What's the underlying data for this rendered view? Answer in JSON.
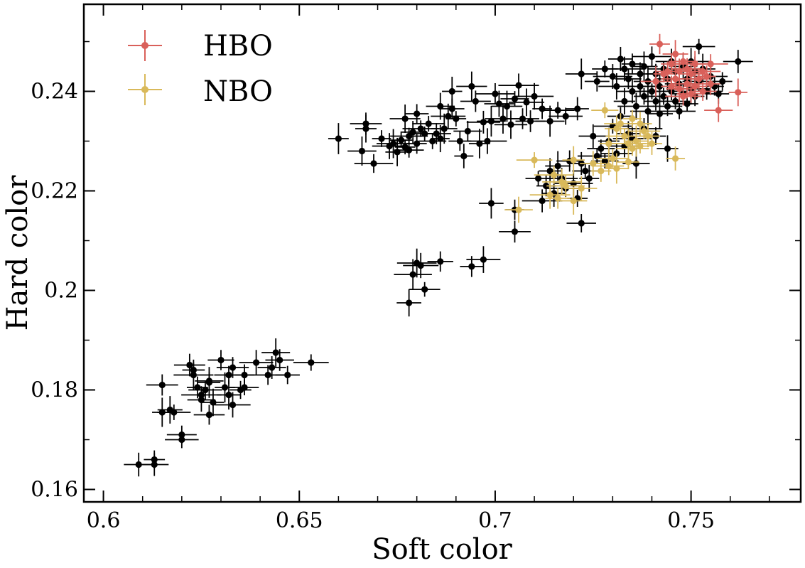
{
  "chart_data": {
    "type": "scatter",
    "xlabel": "Soft color",
    "ylabel": "Hard color",
    "xlim": [
      0.595,
      0.778
    ],
    "ylim": [
      0.1575,
      0.2575
    ],
    "xticks": [
      0.6,
      0.65,
      0.7,
      0.75
    ],
    "xtick_labels": [
      "0.6",
      "0.65",
      "0.7",
      "0.75"
    ],
    "yticks": [
      0.16,
      0.18,
      0.2,
      0.22,
      0.24
    ],
    "ytick_labels": [
      "0.16",
      "0.18",
      "0.2",
      "0.22",
      "0.24"
    ],
    "grid": false,
    "legend_position": "top-left",
    "error_bars": true,
    "series": [
      {
        "color": "#000000",
        "points": [
          [
            0.609,
            0.165
          ],
          [
            0.613,
            0.166
          ],
          [
            0.613,
            0.165
          ],
          [
            0.615,
            0.1755
          ],
          [
            0.615,
            0.181
          ],
          [
            0.617,
            0.176
          ],
          [
            0.618,
            0.1755
          ],
          [
            0.62,
            0.171
          ],
          [
            0.62,
            0.17
          ],
          [
            0.622,
            0.185
          ],
          [
            0.623,
            0.184
          ],
          [
            0.623,
            0.183
          ],
          [
            0.624,
            0.1805
          ],
          [
            0.625,
            0.179
          ],
          [
            0.625,
            0.178
          ],
          [
            0.626,
            0.18
          ],
          [
            0.627,
            0.1815
          ],
          [
            0.627,
            0.1818
          ],
          [
            0.627,
            0.175
          ],
          [
            0.628,
            0.1775
          ],
          [
            0.63,
            0.186
          ],
          [
            0.631,
            0.1805
          ],
          [
            0.632,
            0.179
          ],
          [
            0.632,
            0.183
          ],
          [
            0.633,
            0.1845
          ],
          [
            0.633,
            0.177
          ],
          [
            0.635,
            0.18
          ],
          [
            0.636,
            0.1805
          ],
          [
            0.636,
            0.183
          ],
          [
            0.639,
            0.1855
          ],
          [
            0.642,
            0.183
          ],
          [
            0.643,
            0.1845
          ],
          [
            0.644,
            0.1875
          ],
          [
            0.645,
            0.186
          ],
          [
            0.647,
            0.183
          ],
          [
            0.653,
            0.1855
          ],
          [
            0.678,
            0.1975
          ],
          [
            0.679,
            0.2032
          ],
          [
            0.68,
            0.2055
          ],
          [
            0.681,
            0.205
          ],
          [
            0.682,
            0.2002
          ],
          [
            0.686,
            0.2058
          ],
          [
            0.694,
            0.2048
          ],
          [
            0.697,
            0.2062
          ],
          [
            0.699,
            0.2175
          ],
          [
            0.705,
            0.2162
          ],
          [
            0.705,
            0.2118
          ],
          [
            0.66,
            0.2305
          ],
          [
            0.666,
            0.228
          ],
          [
            0.667,
            0.2335
          ],
          [
            0.667,
            0.2325
          ],
          [
            0.669,
            0.2255
          ],
          [
            0.671,
            0.2305
          ],
          [
            0.673,
            0.229
          ],
          [
            0.674,
            0.2295
          ],
          [
            0.675,
            0.2278
          ],
          [
            0.676,
            0.2302
          ],
          [
            0.677,
            0.2288
          ],
          [
            0.677,
            0.2345
          ],
          [
            0.678,
            0.231
          ],
          [
            0.678,
            0.2282
          ],
          [
            0.679,
            0.2318
          ],
          [
            0.68,
            0.2295
          ],
          [
            0.68,
            0.2355
          ],
          [
            0.681,
            0.2325
          ],
          [
            0.682,
            0.2315
          ],
          [
            0.683,
            0.2335
          ],
          [
            0.684,
            0.23
          ],
          [
            0.685,
            0.2315
          ],
          [
            0.686,
            0.2305
          ],
          [
            0.686,
            0.237
          ],
          [
            0.687,
            0.2325
          ],
          [
            0.688,
            0.235
          ],
          [
            0.689,
            0.2365
          ],
          [
            0.689,
            0.24
          ],
          [
            0.69,
            0.2345
          ],
          [
            0.691,
            0.23
          ],
          [
            0.692,
            0.227
          ],
          [
            0.693,
            0.232
          ],
          [
            0.694,
            0.241
          ],
          [
            0.695,
            0.238
          ],
          [
            0.696,
            0.2295
          ],
          [
            0.697,
            0.2338
          ],
          [
            0.698,
            0.23
          ],
          [
            0.699,
            0.234
          ],
          [
            0.7,
            0.2395
          ],
          [
            0.701,
            0.2375
          ],
          [
            0.702,
            0.2345
          ],
          [
            0.703,
            0.237
          ],
          [
            0.704,
            0.2333
          ],
          [
            0.705,
            0.2385
          ],
          [
            0.706,
            0.2412
          ],
          [
            0.707,
            0.2345
          ],
          [
            0.708,
            0.2378
          ],
          [
            0.709,
            0.234
          ],
          [
            0.71,
            0.239
          ],
          [
            0.712,
            0.2365
          ],
          [
            0.714,
            0.234
          ],
          [
            0.716,
            0.2362
          ],
          [
            0.718,
            0.235
          ],
          [
            0.721,
            0.2365
          ],
          [
            0.711,
            0.2225
          ],
          [
            0.712,
            0.218
          ],
          [
            0.713,
            0.221
          ],
          [
            0.714,
            0.224
          ],
          [
            0.715,
            0.2195
          ],
          [
            0.716,
            0.225
          ],
          [
            0.717,
            0.2225
          ],
          [
            0.718,
            0.2205
          ],
          [
            0.719,
            0.226
          ],
          [
            0.72,
            0.2215
          ],
          [
            0.721,
            0.2185
          ],
          [
            0.722,
            0.2135
          ],
          [
            0.722,
            0.2255
          ],
          [
            0.723,
            0.224
          ],
          [
            0.724,
            0.2225
          ],
          [
            0.725,
            0.231
          ],
          [
            0.726,
            0.227
          ],
          [
            0.727,
            0.2285
          ],
          [
            0.728,
            0.226
          ],
          [
            0.729,
            0.23
          ],
          [
            0.73,
            0.233
          ],
          [
            0.731,
            0.2275
          ],
          [
            0.732,
            0.235
          ],
          [
            0.733,
            0.229
          ],
          [
            0.734,
            0.2315
          ],
          [
            0.735,
            0.2305
          ],
          [
            0.736,
            0.2255
          ],
          [
            0.738,
            0.2325
          ],
          [
            0.741,
            0.231
          ],
          [
            0.744,
            0.2285
          ],
          [
            0.722,
            0.2435
          ],
          [
            0.726,
            0.242
          ],
          [
            0.728,
            0.2445
          ],
          [
            0.73,
            0.243
          ],
          [
            0.731,
            0.241
          ],
          [
            0.732,
            0.2465
          ],
          [
            0.733,
            0.238
          ],
          [
            0.733,
            0.2445
          ],
          [
            0.734,
            0.2425
          ],
          [
            0.735,
            0.24
          ],
          [
            0.735,
            0.2455
          ],
          [
            0.736,
            0.237
          ],
          [
            0.737,
            0.2435
          ],
          [
            0.737,
            0.241
          ],
          [
            0.738,
            0.239
          ],
          [
            0.738,
            0.245
          ],
          [
            0.739,
            0.236
          ],
          [
            0.739,
            0.242
          ],
          [
            0.74,
            0.24
          ],
          [
            0.74,
            0.247
          ],
          [
            0.741,
            0.238
          ],
          [
            0.741,
            0.2435
          ],
          [
            0.742,
            0.2355
          ],
          [
            0.742,
            0.241
          ],
          [
            0.743,
            0.2445
          ],
          [
            0.743,
            0.239
          ],
          [
            0.744,
            0.237
          ],
          [
            0.744,
            0.2425
          ],
          [
            0.745,
            0.24
          ],
          [
            0.745,
            0.246
          ],
          [
            0.746,
            0.238
          ],
          [
            0.746,
            0.244
          ],
          [
            0.747,
            0.2415
          ],
          [
            0.747,
            0.236
          ],
          [
            0.748,
            0.2395
          ],
          [
            0.748,
            0.245
          ],
          [
            0.749,
            0.2425
          ],
          [
            0.749,
            0.2375
          ],
          [
            0.75,
            0.2405
          ],
          [
            0.75,
            0.246
          ],
          [
            0.751,
            0.244
          ],
          [
            0.751,
            0.239
          ],
          [
            0.752,
            0.249
          ],
          [
            0.752,
            0.242
          ],
          [
            0.753,
            0.2445
          ],
          [
            0.754,
            0.24
          ],
          [
            0.755,
            0.243
          ],
          [
            0.756,
            0.241
          ],
          [
            0.757,
            0.2395
          ],
          [
            0.758,
            0.242
          ],
          [
            0.762,
            0.246
          ]
        ]
      },
      {
        "name": "HBO",
        "color": "#d9605a",
        "points": [
          [
            0.741,
            0.242
          ],
          [
            0.742,
            0.2495
          ],
          [
            0.743,
            0.2435
          ],
          [
            0.744,
            0.244
          ],
          [
            0.745,
            0.2455
          ],
          [
            0.745,
            0.241
          ],
          [
            0.746,
            0.2475
          ],
          [
            0.746,
            0.2425
          ],
          [
            0.747,
            0.244
          ],
          [
            0.747,
            0.2405
          ],
          [
            0.748,
            0.246
          ],
          [
            0.748,
            0.239
          ],
          [
            0.749,
            0.2445
          ],
          [
            0.749,
            0.2415
          ],
          [
            0.75,
            0.2435
          ],
          [
            0.75,
            0.2395
          ],
          [
            0.751,
            0.2455
          ],
          [
            0.751,
            0.241
          ],
          [
            0.752,
            0.2425
          ],
          [
            0.753,
            0.244
          ],
          [
            0.753,
            0.24
          ],
          [
            0.754,
            0.243
          ],
          [
            0.755,
            0.2455
          ],
          [
            0.755,
            0.2415
          ],
          [
            0.757,
            0.2362
          ],
          [
            0.762,
            0.2398
          ]
        ]
      },
      {
        "name": "NBO",
        "color": "#d9b95a",
        "points": [
          [
            0.706,
            0.2162
          ],
          [
            0.71,
            0.2262
          ],
          [
            0.714,
            0.2192
          ],
          [
            0.715,
            0.2232
          ],
          [
            0.716,
            0.2185
          ],
          [
            0.717,
            0.2218
          ],
          [
            0.718,
            0.221
          ],
          [
            0.72,
            0.218
          ],
          [
            0.72,
            0.2262
          ],
          [
            0.722,
            0.2205
          ],
          [
            0.725,
            0.2255
          ],
          [
            0.727,
            0.224
          ],
          [
            0.728,
            0.2362
          ],
          [
            0.729,
            0.225
          ],
          [
            0.729,
            0.2295
          ],
          [
            0.73,
            0.2265
          ],
          [
            0.731,
            0.2245
          ],
          [
            0.731,
            0.2325
          ],
          [
            0.732,
            0.2335
          ],
          [
            0.733,
            0.231
          ],
          [
            0.734,
            0.2258
          ],
          [
            0.734,
            0.2295
          ],
          [
            0.735,
            0.2285
          ],
          [
            0.735,
            0.2345
          ],
          [
            0.736,
            0.23
          ],
          [
            0.737,
            0.229
          ],
          [
            0.737,
            0.2335
          ],
          [
            0.738,
            0.232
          ],
          [
            0.739,
            0.231
          ],
          [
            0.74,
            0.2295
          ],
          [
            0.746,
            0.2265
          ]
        ]
      }
    ],
    "legend": [
      {
        "label": "HBO",
        "color": "#d9605a"
      },
      {
        "label": "NBO",
        "color": "#d9b95a"
      }
    ]
  }
}
